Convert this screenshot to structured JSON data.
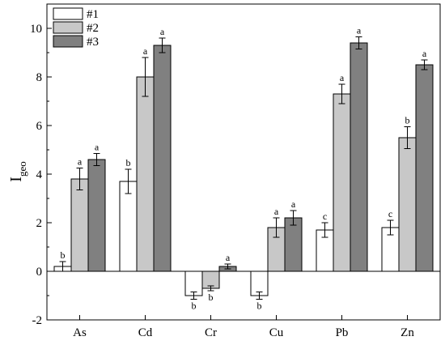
{
  "chart_data": {
    "type": "bar",
    "title": "",
    "xlabel": "",
    "ylabel": {
      "main": "I",
      "sub": "geo"
    },
    "ylim": [
      -2,
      11
    ],
    "yticks": [
      -2,
      0,
      2,
      4,
      6,
      8,
      10
    ],
    "grid": false,
    "legend_position": "top-left",
    "categories": [
      "As",
      "Cd",
      "Cr",
      "Cu",
      "Pb",
      "Zn"
    ],
    "series": [
      {
        "name": "#1",
        "color": "#ffffff",
        "values": [
          0.2,
          3.7,
          -1.0,
          -1.0,
          1.7,
          1.8
        ],
        "errors": [
          0.2,
          0.5,
          0.15,
          0.15,
          0.3,
          0.3
        ],
        "labels": [
          "b",
          "b",
          "b",
          "b",
          "c",
          "c"
        ]
      },
      {
        "name": "#2",
        "color": "#c8c8c8",
        "values": [
          3.8,
          8.0,
          -0.7,
          1.8,
          7.3,
          5.5
        ],
        "errors": [
          0.45,
          0.8,
          0.1,
          0.4,
          0.4,
          0.45
        ],
        "labels": [
          "a",
          "a",
          "b",
          "a",
          "a",
          "b"
        ]
      },
      {
        "name": "#3",
        "color": "#808080",
        "values": [
          4.6,
          9.3,
          0.2,
          2.2,
          9.4,
          8.5
        ],
        "errors": [
          0.25,
          0.3,
          0.1,
          0.3,
          0.25,
          0.2
        ],
        "labels": [
          "a",
          "a",
          "a",
          "a",
          "a",
          "a"
        ]
      }
    ]
  }
}
